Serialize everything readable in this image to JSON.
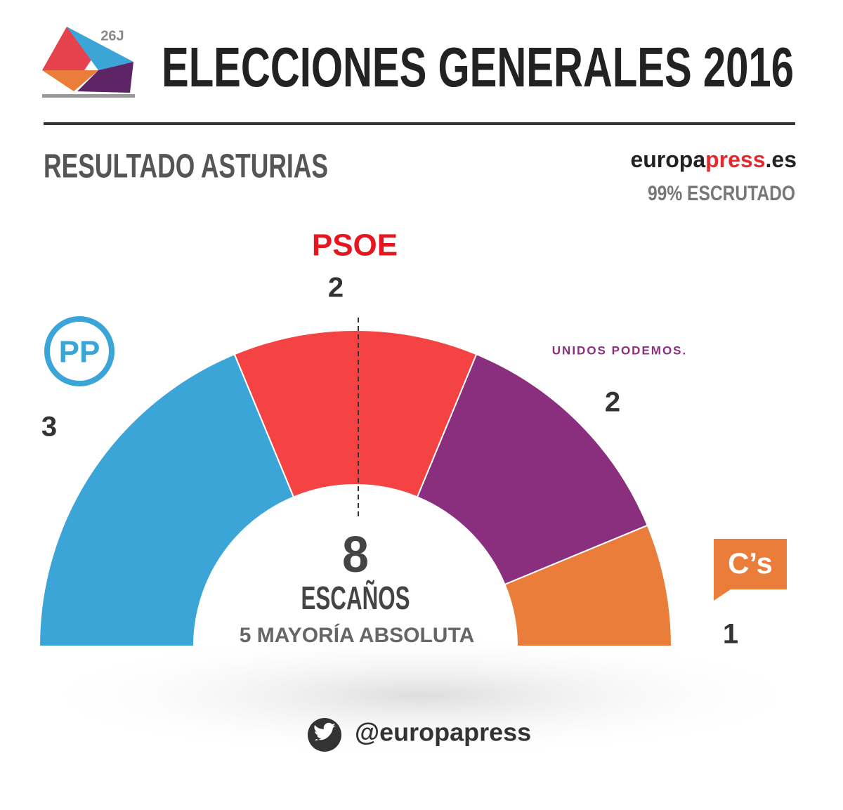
{
  "chart_data": {
    "type": "half-donut",
    "title": "ELECCIONES GENERALES 2016",
    "logo_text": "26J",
    "subtitle": "RESULTADO ASTURIAS",
    "source_parts": [
      "europa",
      "press",
      ".es"
    ],
    "scrutinized": "99% ESCRUTADO",
    "total": 8,
    "total_label": "ESCAÑOS",
    "majority": 5,
    "majority_label": "MAYORÍA ABSOLUTA",
    "handle": "@europapress",
    "series": [
      {
        "name": "PP",
        "color": "#3ba5d8",
        "values": [
          3
        ]
      },
      {
        "name": "PSOE",
        "color": "#f54343",
        "values": [
          2
        ]
      },
      {
        "name": "UNIDOS PODEMOS.",
        "color": "#8a2f7e",
        "values": [
          2
        ]
      },
      {
        "name": "C’s",
        "color": "#ea7d3a",
        "values": [
          1
        ]
      }
    ]
  }
}
